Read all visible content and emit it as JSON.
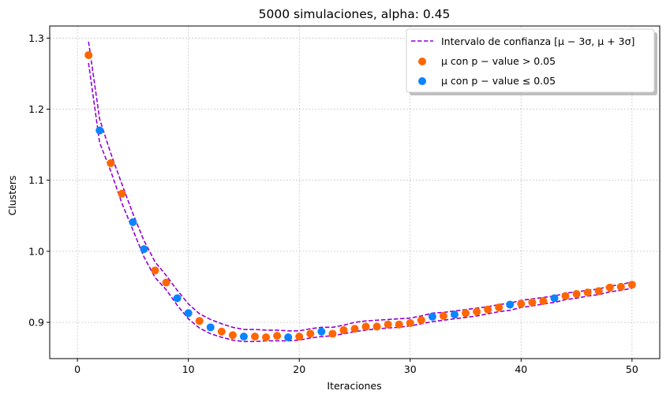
{
  "chart_data": {
    "type": "scatter",
    "title": "5000 simulaciones, alpha: 0.45",
    "xlabel": "Iteraciones",
    "ylabel": "Clusters",
    "xlim": [
      -2.5,
      52.5
    ],
    "ylim": [
      0.849,
      1.317
    ],
    "xticks": [
      0,
      10,
      20,
      30,
      40,
      50
    ],
    "yticks": [
      0.9,
      1.0,
      1.1,
      1.2,
      1.3
    ],
    "xtick_labels": [
      "0",
      "10",
      "20",
      "30",
      "40",
      "50"
    ],
    "ytick_labels": [
      "0.9",
      "1.0",
      "1.1",
      "1.2",
      "1.3"
    ],
    "grid": true,
    "legend_position": "top-right",
    "colors": {
      "interval": "#9400d3",
      "orange": "#ff6600",
      "blue": "#0a84ff"
    },
    "legend": {
      "interval_label": "Intervalo de confianza [μ − 3σ, μ + 3σ]",
      "orange_label": "μ con p − value > 0.05",
      "blue_label": "μ con p − value ≤ 0.05"
    },
    "interval": {
      "x": [
        1,
        2,
        3,
        4,
        5,
        6,
        7,
        8,
        9,
        10,
        11,
        12,
        13,
        14,
        15,
        16,
        17,
        18,
        19,
        20,
        21,
        22,
        23,
        24,
        25,
        26,
        27,
        28,
        29,
        30,
        31,
        32,
        33,
        34,
        35,
        36,
        37,
        38,
        39,
        40,
        41,
        42,
        43,
        44,
        45,
        46,
        47,
        48,
        49,
        50
      ],
      "upper": [
        1.295,
        1.186,
        1.138,
        1.095,
        1.053,
        1.015,
        0.985,
        0.966,
        0.945,
        0.926,
        0.912,
        0.904,
        0.898,
        0.893,
        0.89,
        0.89,
        0.889,
        0.889,
        0.888,
        0.888,
        0.891,
        0.893,
        0.893,
        0.896,
        0.9,
        0.902,
        0.903,
        0.904,
        0.905,
        0.906,
        0.909,
        0.913,
        0.914,
        0.916,
        0.918,
        0.92,
        0.922,
        0.925,
        0.927,
        0.931,
        0.933,
        0.935,
        0.937,
        0.941,
        0.943,
        0.945,
        0.947,
        0.951,
        0.953,
        0.957
      ],
      "lower": [
        1.265,
        1.153,
        1.113,
        1.068,
        1.03,
        0.992,
        0.963,
        0.946,
        0.924,
        0.905,
        0.892,
        0.884,
        0.879,
        0.875,
        0.873,
        0.873,
        0.874,
        0.874,
        0.874,
        0.875,
        0.878,
        0.88,
        0.881,
        0.884,
        0.887,
        0.889,
        0.891,
        0.892,
        0.893,
        0.895,
        0.898,
        0.901,
        0.903,
        0.905,
        0.907,
        0.909,
        0.912,
        0.915,
        0.917,
        0.921,
        0.923,
        0.926,
        0.928,
        0.932,
        0.934,
        0.937,
        0.939,
        0.943,
        0.945,
        0.948
      ]
    },
    "series": [
      {
        "color_key": "orange",
        "points": [
          [
            1,
            1.276
          ],
          [
            3,
            1.124
          ],
          [
            4,
            1.081
          ],
          [
            7,
            0.973
          ],
          [
            8,
            0.956
          ],
          [
            11,
            0.902
          ],
          [
            13,
            0.887
          ],
          [
            14,
            0.882
          ],
          [
            16,
            0.88
          ],
          [
            17,
            0.879
          ],
          [
            18,
            0.881
          ],
          [
            20,
            0.88
          ],
          [
            21,
            0.884
          ],
          [
            23,
            0.884
          ],
          [
            24,
            0.889
          ],
          [
            25,
            0.891
          ],
          [
            26,
            0.894
          ],
          [
            27,
            0.894
          ],
          [
            28,
            0.897
          ],
          [
            29,
            0.897
          ],
          [
            30,
            0.899
          ],
          [
            31,
            0.903
          ],
          [
            33,
            0.909
          ],
          [
            35,
            0.913
          ],
          [
            36,
            0.915
          ],
          [
            37,
            0.918
          ],
          [
            38,
            0.921
          ],
          [
            40,
            0.926
          ],
          [
            41,
            0.928
          ],
          [
            42,
            0.93
          ],
          [
            44,
            0.937
          ],
          [
            45,
            0.94
          ],
          [
            46,
            0.942
          ],
          [
            47,
            0.944
          ],
          [
            48,
            0.949
          ],
          [
            49,
            0.95
          ],
          [
            50,
            0.953
          ]
        ]
      },
      {
        "color_key": "blue",
        "points": [
          [
            2,
            1.17
          ],
          [
            5,
            1.041
          ],
          [
            6,
            1.003
          ],
          [
            9,
            0.934
          ],
          [
            10,
            0.913
          ],
          [
            12,
            0.893
          ],
          [
            15,
            0.88
          ],
          [
            19,
            0.879
          ],
          [
            22,
            0.887
          ],
          [
            32,
            0.908
          ],
          [
            34,
            0.911
          ],
          [
            39,
            0.925
          ],
          [
            43,
            0.934
          ]
        ]
      }
    ]
  }
}
